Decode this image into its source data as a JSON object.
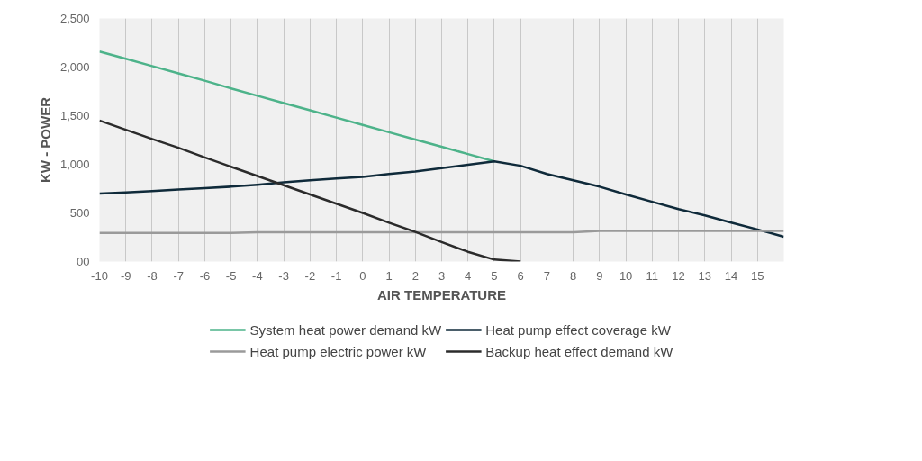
{
  "chart_data": {
    "type": "line",
    "xlabel": "AIR TEMPERATURE",
    "ylabel": "KW - POWER",
    "x": [
      -10,
      -9,
      -8,
      -7,
      -6,
      -5,
      -4,
      -3,
      -2,
      -1,
      0,
      1,
      2,
      3,
      4,
      5,
      6,
      7,
      8,
      9,
      10,
      11,
      12,
      13,
      14,
      15,
      16
    ],
    "series": [
      {
        "name": "System heat power demand kW",
        "color": "#4db38a",
        "values": [
          2160,
          2085,
          2010,
          1935,
          1860,
          1780,
          1705,
          1630,
          1555,
          1480,
          1405,
          1330,
          1255,
          1180,
          1105,
          1030,
          null,
          null,
          null,
          null,
          null,
          null,
          null,
          null,
          null,
          null,
          null
        ]
      },
      {
        "name": "Heat pump effect coverage kW",
        "color": "#0f2a3a",
        "values": [
          700,
          710,
          725,
          740,
          755,
          770,
          790,
          815,
          835,
          855,
          870,
          900,
          925,
          960,
          995,
          1030,
          985,
          900,
          835,
          770,
          690,
          615,
          540,
          475,
          400,
          330,
          255
        ]
      },
      {
        "name": "Heat pump electric power kW",
        "color": "#9a9a9a",
        "values": [
          295,
          295,
          295,
          295,
          295,
          295,
          300,
          300,
          300,
          300,
          300,
          300,
          300,
          300,
          300,
          300,
          300,
          300,
          300,
          315,
          315,
          315,
          315,
          315,
          315,
          315,
          315
        ]
      },
      {
        "name": "Backup heat effect demand kW",
        "color": "#2b2b2b",
        "values": [
          1450,
          1355,
          1260,
          1170,
          1070,
          975,
          880,
          785,
          690,
          595,
          500,
          400,
          305,
          200,
          100,
          20,
          0,
          null,
          null,
          null,
          null,
          null,
          null,
          null,
          null,
          null,
          null
        ]
      }
    ],
    "xlim": [
      -10,
      16
    ],
    "xticks": [
      -10,
      -9,
      -8,
      -7,
      -6,
      -5,
      -4,
      -3,
      -2,
      -1,
      0,
      1,
      2,
      3,
      4,
      5,
      6,
      7,
      8,
      9,
      10,
      11,
      12,
      13,
      14,
      15
    ],
    "ylim": [
      0,
      2500
    ],
    "yticks": [
      {
        "value": 0,
        "label": "00"
      },
      {
        "value": 500,
        "label": "500"
      },
      {
        "value": 1000,
        "label": "1,000"
      },
      {
        "value": 1500,
        "label": "1,500"
      },
      {
        "value": 2000,
        "label": "2,000"
      },
      {
        "value": 2500,
        "label": "2,500"
      }
    ],
    "grid": "x",
    "legend": "bottom",
    "marker": "none",
    "line_style": "solid"
  }
}
